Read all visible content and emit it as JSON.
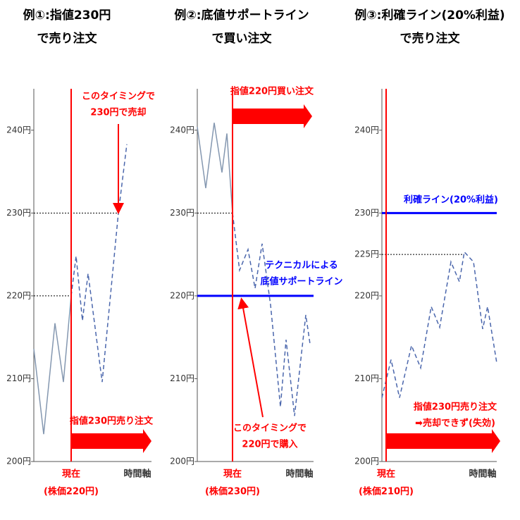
{
  "chart_data": [
    {
      "type": "line",
      "title": [
        "例①:指値230円",
        "で売り注文"
      ],
      "ylim": [
        200,
        245
      ],
      "yticks": [
        {
          "value": 200,
          "label": "200円"
        },
        {
          "value": 210,
          "label": "210円"
        },
        {
          "value": 220,
          "label": "220円"
        },
        {
          "value": 230,
          "label": "230円"
        },
        {
          "value": 240,
          "label": "240円"
        }
      ],
      "xlim": [
        0,
        167
      ],
      "x": [
        0,
        14,
        30,
        42,
        53,
        60,
        69,
        77,
        97,
        120,
        132
      ],
      "series": [
        {
          "color": "#8497b0",
          "style": "solid",
          "values": [
            213.6,
            203.3,
            216.7,
            209.6,
            220,
            null,
            null,
            null,
            null,
            null,
            null
          ]
        },
        {
          "color": "#4a66ac",
          "style": "dashed",
          "values": [
            null,
            null,
            null,
            null,
            220,
            224.8,
            217,
            222.7,
            209.6,
            230,
            238.3
          ]
        }
      ],
      "ref_lines": [
        220,
        230
      ],
      "now_line": {
        "x": 53,
        "color": "#ff0000",
        "label": [
          "現在",
          "(株価220円)"
        ]
      },
      "xlabel": "時間軸",
      "order": [
        "指値230円売り注文"
      ],
      "callout": [
        "このタイミングで",
        "230円で売却"
      ]
    },
    {
      "type": "line",
      "title": [
        "例②:底値サポートライン",
        "で買い注文"
      ],
      "ylim": [
        200,
        245
      ],
      "yticks": [
        {
          "value": 200,
          "label": "200円"
        },
        {
          "value": 210,
          "label": "210円"
        },
        {
          "value": 220,
          "label": "220円"
        },
        {
          "value": 230,
          "label": "230円"
        },
        {
          "value": 240,
          "label": "240円"
        }
      ],
      "xlim": [
        0,
        165
      ],
      "x": [
        0,
        12,
        24,
        35,
        42,
        50,
        60,
        72,
        82,
        92,
        104,
        118,
        126,
        138,
        154,
        160
      ],
      "series": [
        {
          "color": "#8497b0",
          "style": "solid",
          "values": [
            240.4,
            233,
            240.9,
            234.9,
            239.6,
            230,
            null,
            null,
            null,
            null,
            null,
            null,
            null,
            null,
            null,
            null
          ]
        },
        {
          "color": "#4a66ac",
          "style": "dashed",
          "values": [
            null,
            null,
            null,
            null,
            null,
            230,
            223.1,
            225.6,
            220.9,
            226.3,
            218.9,
            206.6,
            214.7,
            205.5,
            217.7,
            214.2
          ]
        }
      ],
      "ref_lines": [
        230
      ],
      "level_line": {
        "value": 220,
        "color": "#0000ff",
        "label": [
          "テクニカルによる",
          "底値サポートライン"
        ]
      },
      "now_line": {
        "x": 50,
        "color": "#ff0000",
        "label": [
          "現在",
          "(株価230円)"
        ]
      },
      "xlabel": "時間軸",
      "order": [
        "指値220円買い注文"
      ],
      "callout": [
        "このタイミングで",
        "220円で購入"
      ]
    },
    {
      "type": "line",
      "title": [
        "例③:利確ライン(20%利益)",
        "で売り注文"
      ],
      "ylim": [
        200,
        245
      ],
      "yticks": [
        {
          "value": 200,
          "label": "200円"
        },
        {
          "value": 210,
          "label": "210円"
        },
        {
          "value": 220,
          "label": "220円"
        },
        {
          "value": 225,
          "label": "225円"
        },
        {
          "value": 230,
          "label": "230円"
        },
        {
          "value": 240,
          "label": "240円"
        }
      ],
      "xlim": [
        0,
        163
      ],
      "x": [
        0,
        13,
        25,
        42,
        55,
        70,
        82,
        98,
        110,
        117,
        130,
        143,
        150,
        163
      ],
      "series": [
        {
          "color": "#4a66ac",
          "style": "dashed",
          "values": [
            207.7,
            212.3,
            207.7,
            214,
            211.3,
            218.7,
            216.2,
            224.1,
            221.7,
            225.3,
            224.1,
            216,
            218.7,
            211.9
          ]
        }
      ],
      "ref_lines": [
        225
      ],
      "level_line": {
        "value": 230,
        "color": "#0000ff",
        "label": [
          "利確ライン(20%利益)"
        ]
      },
      "now_line": {
        "x": 6,
        "color": "#ff0000",
        "label": [
          "現在",
          "(株価210円)"
        ]
      },
      "xlabel": "時間軸",
      "order": [
        "指値230円売り注文",
        "➡売却できず(失効)"
      ]
    }
  ]
}
